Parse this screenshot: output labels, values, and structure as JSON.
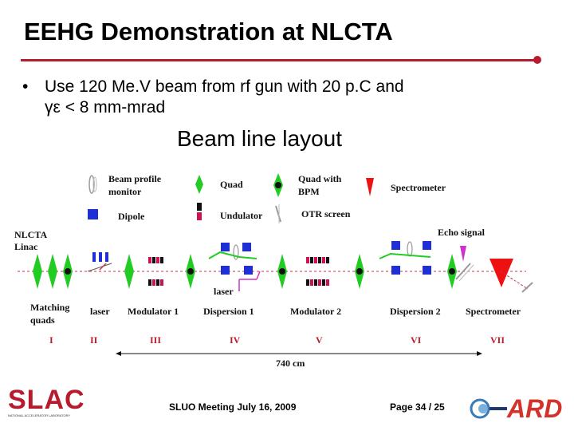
{
  "slide": {
    "title": "EEHG Demonstration at NLCTA",
    "bullet_line1": "Use 120 Me.V beam from rf gun with 20 p.C and",
    "bullet_line2": "γε < 8 mm-mrad",
    "layout_title": "Beam line layout"
  },
  "legend": {
    "beam_profile_monitor": [
      "Beam profile",
      "monitor"
    ],
    "quad": "Quad",
    "quad_with_bpm": [
      "Quad with",
      "BPM"
    ],
    "spectrometer": "Spectrometer",
    "dipole": "Dipole",
    "undulator": "Undulator",
    "otr_screen": "OTR screen"
  },
  "beamline": {
    "nlcta": [
      "NLCTA",
      "Linac"
    ],
    "echo_signal": "Echo signal",
    "laser_top": "laser",
    "matching": [
      "Matching",
      "quads"
    ],
    "sections": [
      "laser",
      "Modulator 1",
      "Dispersion 1",
      "Modulator 2",
      "Dispersion 2",
      "Spectrometer"
    ],
    "roman": [
      "I",
      "II",
      "III",
      "IV",
      "V",
      "VI",
      "VII"
    ],
    "length": "740 cm"
  },
  "colors": {
    "quad": "#22cc22",
    "dipole": "#1f2fd6",
    "accent": "#b81c2c",
    "spectrometer": "#ee1111",
    "laser": "#cc33cc",
    "undulator": "#cc1155"
  },
  "footer": {
    "meeting": "SLUO Meeting July 16, 2009",
    "page": "Page 34 / 25",
    "slac": "SLAC",
    "slac_sub": "NATIONAL ACCELERATOR LABORATORY",
    "ard": "ARD"
  }
}
